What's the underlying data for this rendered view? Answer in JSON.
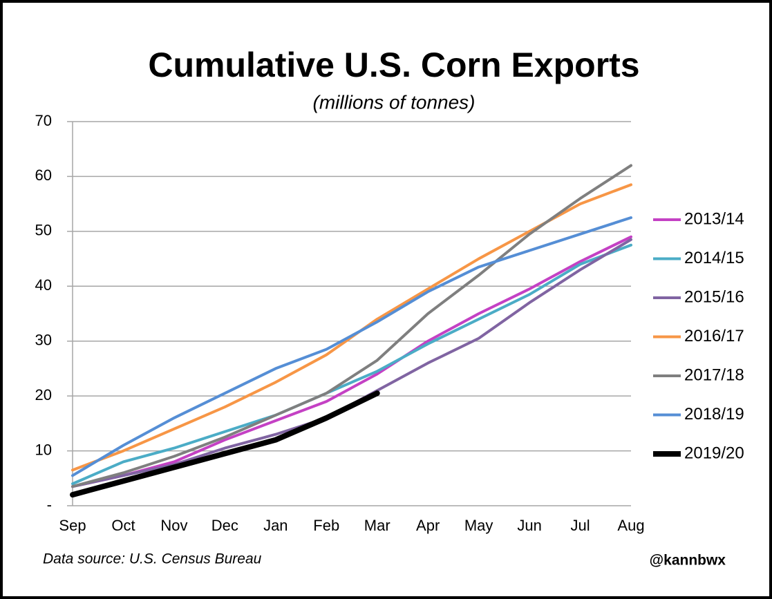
{
  "chart_data": {
    "type": "line",
    "title": "Cumulative U.S. Corn Exports",
    "subtitle": "(millions of tonnes)",
    "source": "Data source: U.S. Census Bureau",
    "credit": "@kannbwx",
    "categories": [
      "Sep",
      "Oct",
      "Nov",
      "Dec",
      "Jan",
      "Feb",
      "Mar",
      "Apr",
      "May",
      "Jun",
      "Jul",
      "Aug"
    ],
    "ylim": [
      0,
      70
    ],
    "yticks": [
      {
        "value": 0,
        "label": "-"
      },
      10,
      20,
      30,
      40,
      50,
      60,
      70
    ],
    "grid": true,
    "legend": "right",
    "series": [
      {
        "name": "2013/14",
        "color": "#c441c4",
        "values": [
          3.5,
          5.5,
          8,
          12,
          15.5,
          19,
          24,
          30,
          35,
          39.5,
          44.5,
          49
        ]
      },
      {
        "name": "2014/15",
        "color": "#4bacc6",
        "values": [
          4,
          8,
          10.5,
          13.5,
          16.5,
          20.5,
          24.5,
          29.5,
          34,
          38.5,
          44,
          47.5
        ]
      },
      {
        "name": "2015/16",
        "color": "#8064a2",
        "values": [
          3.5,
          5.5,
          7.5,
          10.5,
          13,
          16,
          21,
          26,
          30.5,
          37,
          43,
          48.5
        ]
      },
      {
        "name": "2016/17",
        "color": "#f79646",
        "values": [
          6.5,
          10,
          14,
          18,
          22.5,
          27.5,
          34,
          39.5,
          45,
          50,
          55,
          58.5
        ]
      },
      {
        "name": "2017/18",
        "color": "#7f7f7f",
        "values": [
          3.5,
          6,
          9,
          12.5,
          16.5,
          20.5,
          26.5,
          35,
          42,
          49.5,
          56,
          62
        ]
      },
      {
        "name": "2018/19",
        "color": "#558ed5",
        "values": [
          5.5,
          11,
          16,
          20.5,
          25,
          28.5,
          33.5,
          39,
          43.5,
          46.5,
          49.5,
          52.5
        ]
      },
      {
        "name": "2019/20",
        "color": "#000000",
        "values": [
          2,
          4.5,
          7,
          9.5,
          12,
          16,
          20.5,
          null,
          null,
          null,
          null,
          null
        ]
      }
    ]
  }
}
